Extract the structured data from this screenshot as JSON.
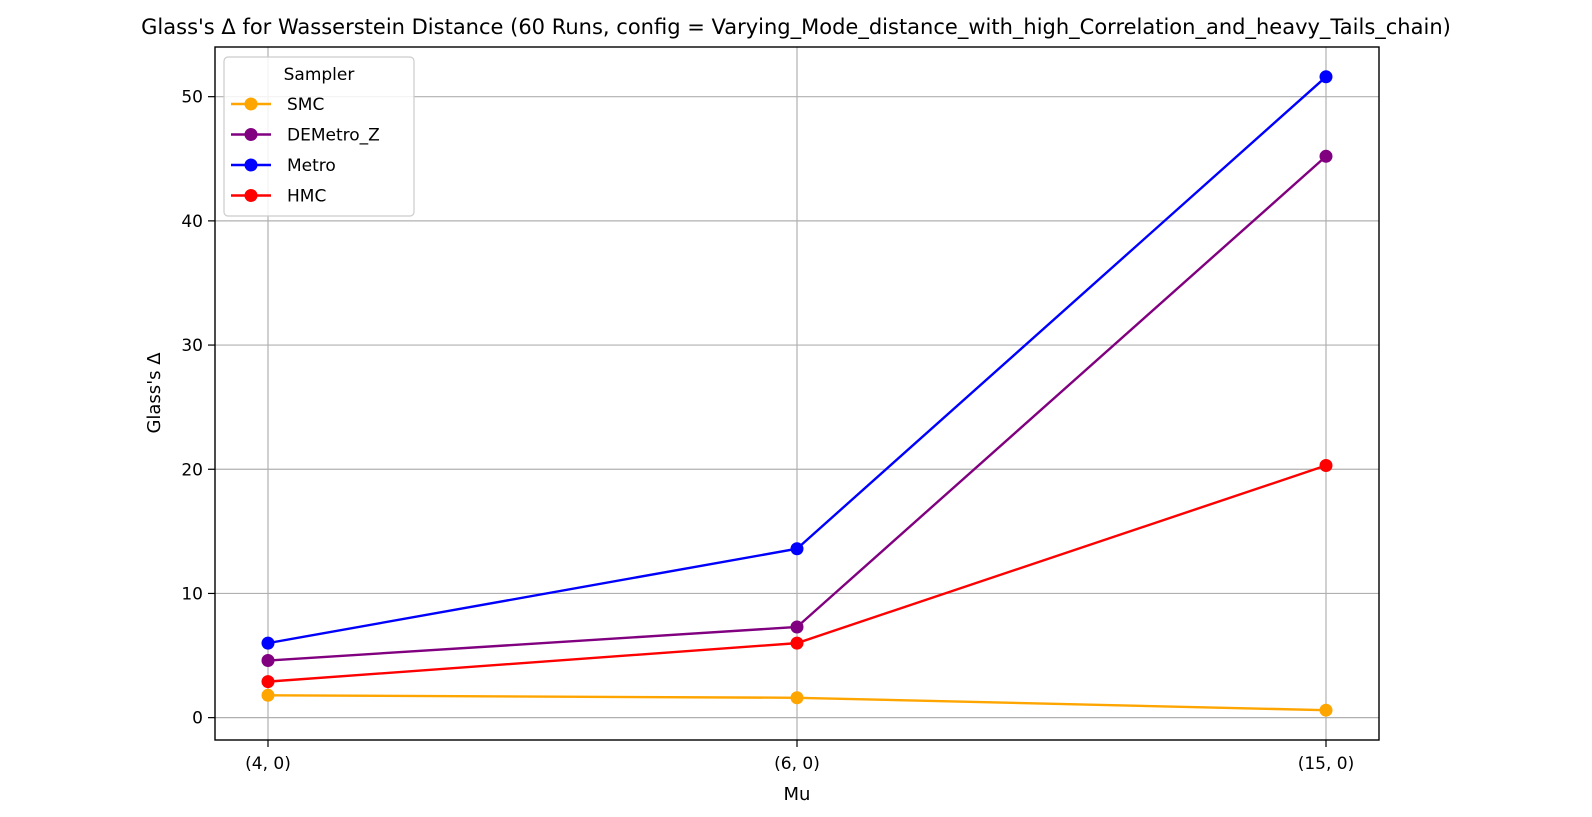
{
  "chart_data": {
    "type": "line",
    "title": "Glass's Δ for Wasserstein Distance (60 Runs, config = Varying_Mode_distance_with_high_Correlation_and_heavy_Tails_chain)",
    "xlabel": "Mu",
    "ylabel": "Glass's Δ",
    "categories": [
      "(4, 0)",
      "(6, 0)",
      "(15, 0)"
    ],
    "ylim": [
      -1.8,
      54.0
    ],
    "yticks": [
      0,
      10,
      20,
      30,
      40,
      50
    ],
    "grid": true,
    "legend": {
      "title": "Sampler",
      "position": "top-left"
    },
    "series": [
      {
        "name": "SMC",
        "color": "#FFA500",
        "values": [
          1.8,
          1.6,
          0.6
        ]
      },
      {
        "name": "DEMetro_Z",
        "color": "#800080",
        "values": [
          4.6,
          7.3,
          45.2
        ]
      },
      {
        "name": "Metro",
        "color": "#0000FF",
        "values": [
          6.0,
          13.6,
          51.6
        ]
      },
      {
        "name": "HMC",
        "color": "#FF0000",
        "values": [
          2.9,
          6.0,
          20.3
        ]
      }
    ]
  }
}
